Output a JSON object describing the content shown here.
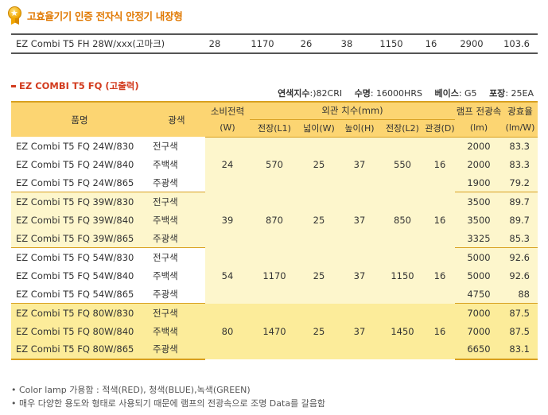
{
  "top_title": "고효율기기 인증 전자식 안정기 내장형",
  "top_row": {
    "name": "EZ Combi T5 FH 28W/xxx(고마크)",
    "watt": "28",
    "l1": "1170",
    "w": "26",
    "h": "38",
    "l2": "1150",
    "d": "16",
    "lumen": "2900",
    "efficacy": "103.6"
  },
  "section_title": "EZ COMBI T5 FQ (고출력)",
  "specs": {
    "cri_label": "연색지수",
    "cri_value": ":)82CRI",
    "life_label": "수명",
    "life_value": ": 16000HRS",
    "base_label": "베이스",
    "base_value": ": G5",
    "pack_label": "포장",
    "pack_value": ": 25EA"
  },
  "headers": {
    "name": "품명",
    "color": "광색",
    "watt": "소비전력",
    "watt_unit": "(W)",
    "dims": "외관 치수(mm)",
    "l1": "전장(L1)",
    "w": "넓이(W)",
    "h": "높이(H)",
    "l2": "전장(L2)",
    "d": "관경(D)",
    "lumen": "램프 전광속",
    "lumen_unit": "(lm)",
    "efficacy": "광효율",
    "efficacy_unit": "(lm/W)"
  },
  "groups": [
    {
      "watt": "24",
      "l1": "570",
      "w": "25",
      "h": "37",
      "l2": "550",
      "d": "16",
      "rows": [
        {
          "name": "EZ Combi T5 FQ 24W/830",
          "color": "전구색",
          "lumen": "2000",
          "efficacy": "83.3"
        },
        {
          "name": "EZ Combi T5 FQ 24W/840",
          "color": "주백색",
          "lumen": "2000",
          "efficacy": "83.3"
        },
        {
          "name": "EZ Combi T5 FQ 24W/865",
          "color": "주광색",
          "lumen": "1900",
          "efficacy": "79.2"
        }
      ]
    },
    {
      "watt": "39",
      "l1": "870",
      "w": "25",
      "h": "37",
      "l2": "850",
      "d": "16",
      "rows": [
        {
          "name": "EZ Combi T5 FQ 39W/830",
          "color": "전구색",
          "lumen": "3500",
          "efficacy": "89.7"
        },
        {
          "name": "EZ Combi T5 FQ 39W/840",
          "color": "주백색",
          "lumen": "3500",
          "efficacy": "89.7"
        },
        {
          "name": "EZ Combi T5 FQ 39W/865",
          "color": "주광색",
          "lumen": "3325",
          "efficacy": "85.3"
        }
      ]
    },
    {
      "watt": "54",
      "l1": "1170",
      "w": "25",
      "h": "37",
      "l2": "1150",
      "d": "16",
      "rows": [
        {
          "name": "EZ Combi T5 FQ 54W/830",
          "color": "전구색",
          "lumen": "5000",
          "efficacy": "92.6"
        },
        {
          "name": "EZ Combi T5 FQ 54W/840",
          "color": "주백색",
          "lumen": "5000",
          "efficacy": "92.6"
        },
        {
          "name": "EZ Combi T5 FQ 54W/865",
          "color": "주광색",
          "lumen": "4750",
          "efficacy": "88"
        }
      ]
    },
    {
      "watt": "80",
      "l1": "1470",
      "w": "25",
      "h": "37",
      "l2": "1450",
      "d": "16",
      "rows": [
        {
          "name": "EZ Combi T5 FQ 80W/830",
          "color": "전구색",
          "lumen": "7000",
          "efficacy": "87.5"
        },
        {
          "name": "EZ Combi T5 FQ 80W/840",
          "color": "주백색",
          "lumen": "7000",
          "efficacy": "87.5"
        },
        {
          "name": "EZ Combi T5 FQ 80W/865",
          "color": "주광색",
          "lumen": "6650",
          "efficacy": "83.1"
        }
      ]
    }
  ],
  "notes": [
    "• Color lamp 가용함 : 적색(RED), 청색(BLUE),녹색(GREEN)",
    "• 매우 다양한 용도와 형태로 사용되기 때문에 램프의 전광속으로 조명 Data를 갈음함"
  ],
  "colors": {
    "title_orange": "#e07800",
    "section_red": "#d23b1e",
    "header_yellow": "#fcd572",
    "row_light": "#fdf6cc",
    "row_deep": "#fcec9a"
  }
}
